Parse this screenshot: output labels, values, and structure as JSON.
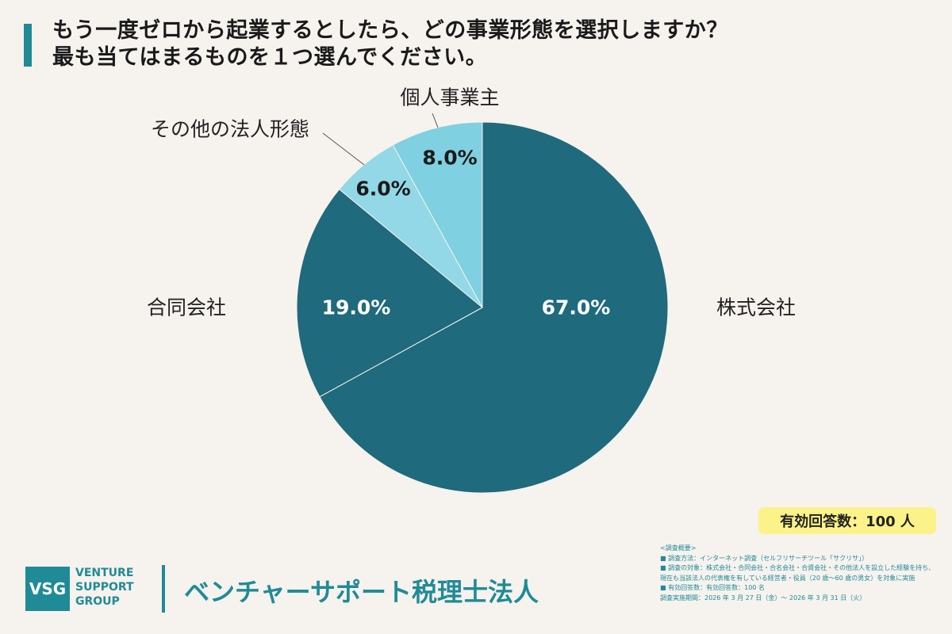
{
  "title": {
    "line1": "もう一度ゼロから起業するとしたら、どの事業形態を選択しますか？",
    "line2": "最も当てはまるものを１つ選んでください。"
  },
  "chart_data": {
    "type": "pie",
    "categories": [
      "株式会社",
      "合同会社",
      "その他の法人形態",
      "個人事業主"
    ],
    "values": [
      67.0,
      19.0,
      6.0,
      8.0
    ],
    "value_labels": [
      "67.0%",
      "19.0%",
      "6.0%",
      "8.0%"
    ],
    "colors": [
      "#1f6a7c",
      "#1f6a7c",
      "#92d8e6",
      "#7fd0e1"
    ],
    "label_colors": [
      "#ffffff",
      "#ffffff",
      "#1a1a1a",
      "#1a1a1a"
    ],
    "start": "12 o'clock",
    "direction": "clockwise"
  },
  "respondents": "有効回答数：100 人",
  "logo": {
    "mark": "VSG",
    "line1": "VENTURE",
    "line2": "SUPPORT",
    "line3": "GROUP"
  },
  "company": "ベンチャーサポート税理士法人",
  "survey_notes": {
    "heading": "<調査概要>",
    "method": "■ 調査方法：インターネット調査（セルフリサーチツール「サクリサ」）",
    "target1": "■ 調査の対象：株式会社・合同会社・合名会社・合資会社・その他法人を設立した経験を持ち、",
    "target2": "現在も当該法人の代表権を有している経営者・役員（20 歳〜60 歳の男女）を対象に実施",
    "count": "■ 有効回答数：有効回答数：100 名",
    "period": "調査実施期間：2026 年 3 月 27 日（金）〜 2026 年 3 月 31 日（火）"
  }
}
